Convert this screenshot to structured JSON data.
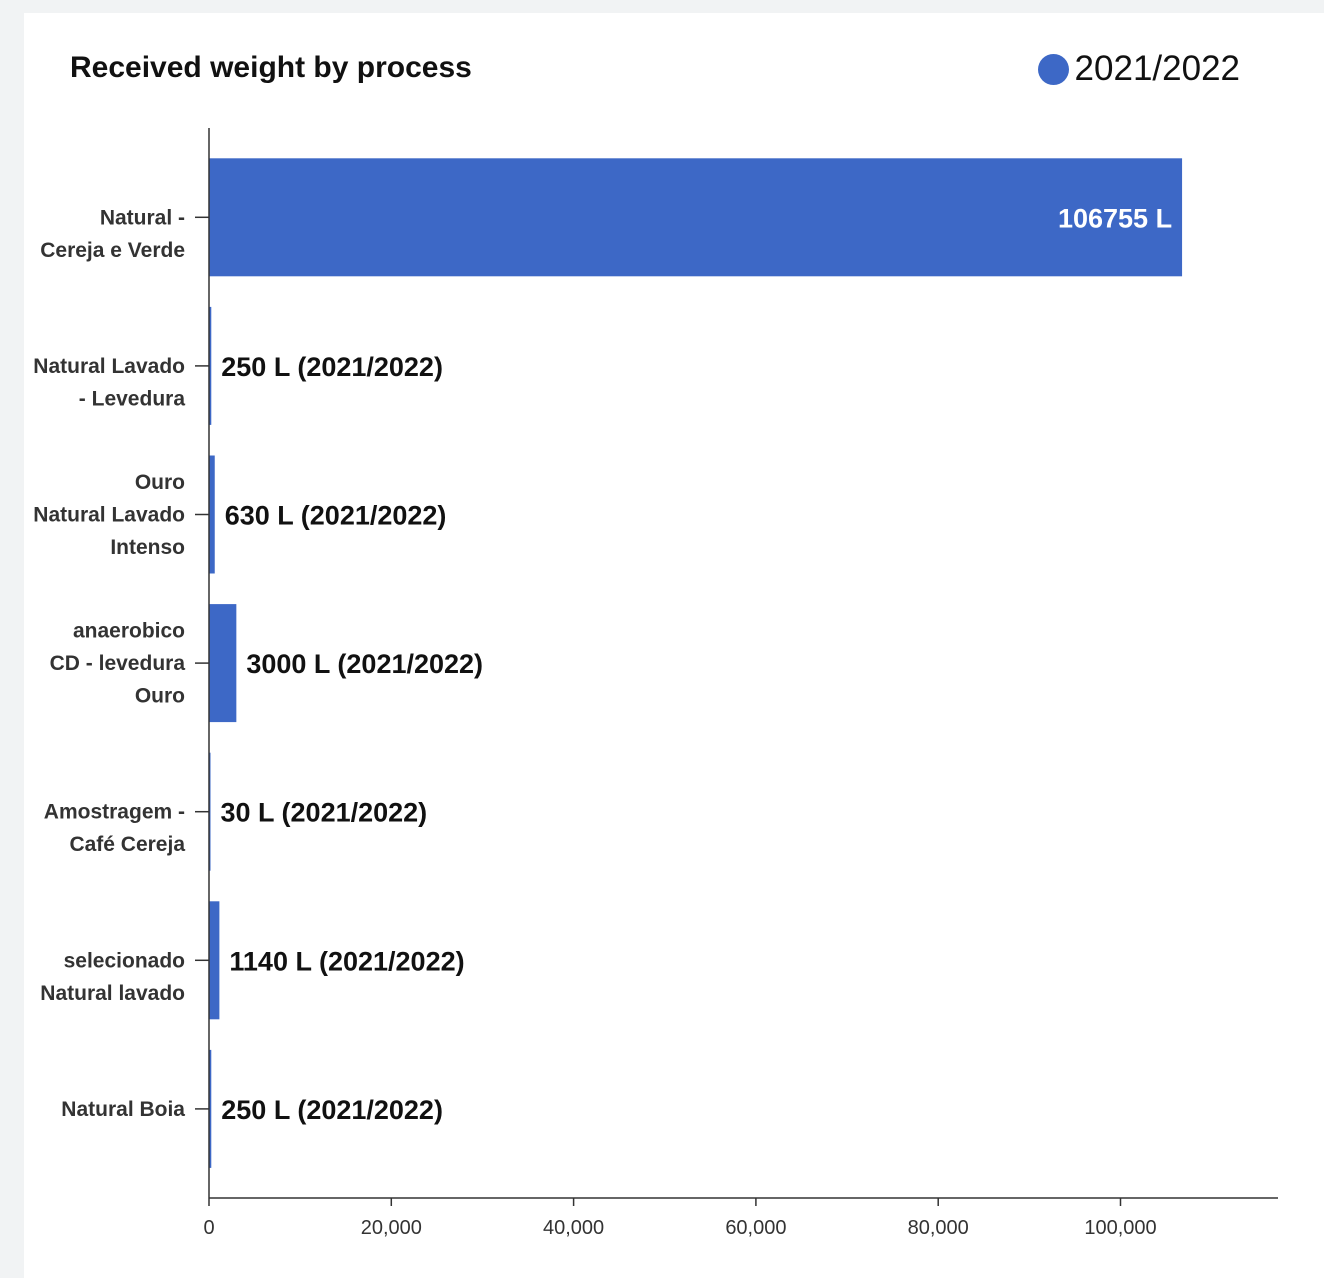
{
  "chart_data": {
    "type": "bar",
    "orientation": "horizontal",
    "title": "Received weight by process",
    "xlabel": "",
    "ylabel": "",
    "xlim": [
      0,
      117000
    ],
    "xticks": [
      0,
      20000,
      40000,
      60000,
      80000,
      100000
    ],
    "xtick_labels": [
      "0",
      "20,000",
      "40,000",
      "60,000",
      "80,000",
      "100,000"
    ],
    "grid": false,
    "legend_position": "top-right",
    "categories": [
      [
        "Natural -",
        "Cereja e Verde"
      ],
      [
        "Natural Lavado",
        "- Levedura"
      ],
      [
        "Ouro",
        "Natural Lavado",
        "Intenso"
      ],
      [
        "anaerobico",
        "CD - levedura",
        "Ouro"
      ],
      [
        "Amostragem -",
        "Café Cereja"
      ],
      [
        "selecionado",
        "Natural lavado"
      ],
      [
        "Natural Boia"
      ]
    ],
    "series": [
      {
        "name": "2021/2022",
        "color": "#3d68c6",
        "values": [
          106755,
          250,
          630,
          3000,
          30,
          1140,
          250
        ],
        "data_labels": [
          "106755 L",
          "250 L (2021/2022)",
          "630 L (2021/2022)",
          "3000 L (2021/2022)",
          "30 L (2021/2022)",
          "1140 L (2021/2022)",
          "250 L (2021/2022)"
        ]
      }
    ]
  }
}
